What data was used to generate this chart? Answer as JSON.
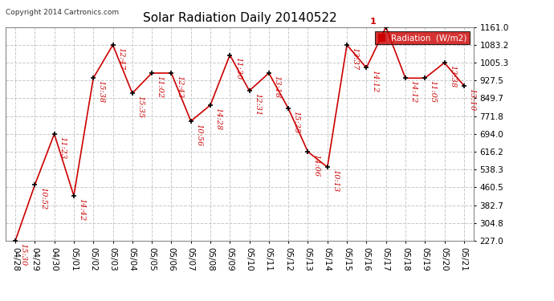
{
  "title": "Solar Radiation Daily 20140522",
  "copyright": "Copyright 2014 Cartronics.com",
  "line_color": "#cc0000",
  "background_color": "#ffffff",
  "grid_color": "#c8c8c8",
  "categories": [
    "04/28",
    "04/29",
    "04/30",
    "05/01",
    "05/02",
    "05/03",
    "05/04",
    "05/05",
    "05/06",
    "05/07",
    "05/08",
    "05/09",
    "05/10",
    "05/11",
    "05/12",
    "05/13",
    "05/14",
    "05/15",
    "05/16",
    "05/17",
    "05/18",
    "05/19",
    "05/20",
    "05/21"
  ],
  "values": [
    227.0,
    471.0,
    694.0,
    424.0,
    938.0,
    1083.2,
    872.0,
    960.0,
    960.0,
    750.0,
    820.0,
    1039.0,
    883.0,
    960.0,
    805.0,
    616.2,
    549.0,
    1083.2,
    983.0,
    1161.0,
    938.0,
    938.0,
    1005.3,
    905.0
  ],
  "annotations": [
    "15:30",
    "10:52",
    "11:23",
    "14:42",
    "15:38",
    "12:47",
    "15:35",
    "11:02",
    "12:43",
    "10:56",
    "14:28",
    "11:30",
    "12:31",
    "13:18",
    "15:25",
    "14:06",
    "10:13",
    "13:37",
    "14:12",
    "1",
    "14:12",
    "11:05",
    "13:38",
    "13:10"
  ],
  "ylim_min": 227.0,
  "ylim_max": 1161.0,
  "yticks": [
    227.0,
    304.8,
    382.7,
    460.5,
    538.3,
    616.2,
    694.0,
    771.8,
    849.7,
    927.5,
    1005.3,
    1083.2,
    1161.0
  ],
  "legend_box_color": "#cc0000",
  "legend_num": "1",
  "ann_fontsize": 7.0,
  "tick_fontsize": 7.5,
  "title_fontsize": 11,
  "copyright_fontsize": 6.5
}
